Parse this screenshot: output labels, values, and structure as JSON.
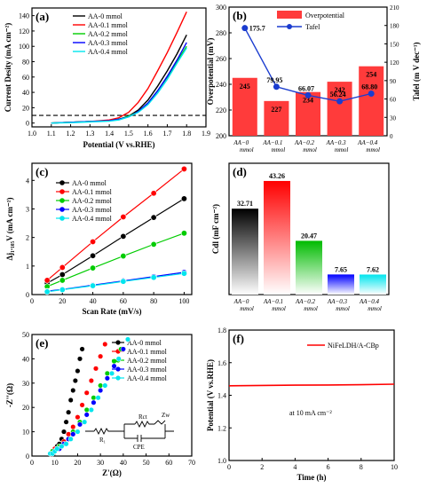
{
  "chart_data": [
    {
      "panel": "(a)",
      "type": "line",
      "xlabel": "Potential (V vs.RHE)",
      "ylabel": "Current Desity (mA cm⁻²)",
      "xlim": [
        1.0,
        1.9
      ],
      "ylim": [
        -5,
        150
      ],
      "xticks": [
        "1.0",
        "1.1",
        "1.2",
        "1.3",
        "1.4",
        "1.5",
        "1.6",
        "1.7",
        "1.8",
        "1.9"
      ],
      "yticks": [
        "0",
        "20",
        "40",
        "60",
        "80",
        "100",
        "120",
        "140"
      ],
      "reference_line_y": 10,
      "series": [
        {
          "name": "AA-0 mmol",
          "color": "#000000",
          "x": [
            1.1,
            1.2,
            1.3,
            1.4,
            1.45,
            1.5,
            1.55,
            1.6,
            1.65,
            1.7,
            1.75,
            1.8
          ],
          "y": [
            0,
            1,
            2,
            3,
            5,
            9,
            17,
            30,
            48,
            68,
            90,
            115
          ]
        },
        {
          "name": "AA-0.1 mmol",
          "color": "#ff0000",
          "x": [
            1.1,
            1.2,
            1.3,
            1.4,
            1.45,
            1.5,
            1.55,
            1.6,
            1.65,
            1.7,
            1.75,
            1.8
          ],
          "y": [
            0,
            1,
            2,
            4,
            7,
            14,
            27,
            45,
            68,
            92,
            118,
            145
          ]
        },
        {
          "name": "AA-0.2 mmol",
          "color": "#00cc00",
          "x": [
            1.1,
            1.2,
            1.3,
            1.4,
            1.45,
            1.5,
            1.55,
            1.6,
            1.65,
            1.7,
            1.75,
            1.8
          ],
          "y": [
            0,
            1,
            2,
            3,
            5,
            9,
            15,
            26,
            42,
            60,
            80,
            100
          ]
        },
        {
          "name": "AA-0.3 mmol",
          "color": "#0000ff",
          "x": [
            1.1,
            1.2,
            1.3,
            1.4,
            1.45,
            1.5,
            1.55,
            1.6,
            1.65,
            1.7,
            1.75,
            1.8
          ],
          "y": [
            0,
            1,
            2,
            3,
            5,
            8,
            15,
            26,
            42,
            61,
            82,
            105
          ]
        },
        {
          "name": "AA-0.4 mmol",
          "color": "#00e5ee",
          "x": [
            1.1,
            1.2,
            1.3,
            1.4,
            1.45,
            1.5,
            1.55,
            1.6,
            1.65,
            1.7,
            1.75,
            1.8
          ],
          "y": [
            0,
            0.5,
            1.5,
            2.5,
            4,
            8,
            14,
            24,
            39,
            57,
            78,
            98
          ]
        }
      ]
    },
    {
      "panel": "(b)",
      "type": "bar",
      "categories": [
        "AA−0 mmol",
        "AA−0.1 mmol",
        "AA−0.2 mmol",
        "AA−0.3 mmol",
        "AA−0.4 mmol"
      ],
      "ylabel": "Overpotential (mV)",
      "ylim": [
        200,
        300
      ],
      "yticks": [
        "200",
        "220",
        "240",
        "260",
        "280",
        "300"
      ],
      "y2label": "Tafel (m V dec⁻¹)",
      "y2lim": [
        0,
        210
      ],
      "y2ticks": [
        "0",
        "30",
        "60",
        "90",
        "120",
        "150",
        "180",
        "210"
      ],
      "bar_color": "#ff3b3b",
      "line_color": "#1a3ccf",
      "series": [
        {
          "name": "Overpotential",
          "values": [
            245,
            227,
            234,
            242,
            254
          ],
          "labels": [
            "245",
            "227",
            "234",
            "242",
            "254"
          ]
        },
        {
          "name": "Tafel",
          "values": [
            175.7,
            79.95,
            66.07,
            56.24,
            68.8
          ],
          "labels": [
            "175.7",
            "79.95",
            "66.07",
            "56.24",
            "68.80"
          ]
        }
      ]
    },
    {
      "panel": "(c)",
      "type": "scatter",
      "xlabel": "Scan Rate (mV/s)",
      "ylabel": "Δj₁.₁₀₅V (mA cm⁻²)",
      "xlim": [
        0,
        105
      ],
      "ylim": [
        0,
        4.6
      ],
      "xticks": [
        "0",
        "20",
        "40",
        "60",
        "80",
        "100"
      ],
      "yticks": [
        "0",
        "1",
        "2",
        "3",
        "4"
      ],
      "x": [
        10,
        20,
        40,
        60,
        80,
        100
      ],
      "series": [
        {
          "name": "AA-0 mmol",
          "color": "#000000",
          "values": [
            0.4,
            0.7,
            1.36,
            2.04,
            2.7,
            3.36
          ]
        },
        {
          "name": "AA-0.1 mmol",
          "color": "#ff0000",
          "values": [
            0.5,
            0.95,
            1.85,
            2.72,
            3.55,
            4.4
          ]
        },
        {
          "name": "AA-0.2 mmol",
          "color": "#00cc00",
          "values": [
            0.28,
            0.5,
            0.93,
            1.35,
            1.76,
            2.15
          ]
        },
        {
          "name": "AA-0.3 mmol",
          "color": "#0000ff",
          "values": [
            0.12,
            0.18,
            0.33,
            0.48,
            0.63,
            0.78
          ]
        },
        {
          "name": "AA-0.4 mmol",
          "color": "#00e5ee",
          "values": [
            0.1,
            0.17,
            0.31,
            0.46,
            0.6,
            0.74
          ]
        }
      ]
    },
    {
      "panel": "(d)",
      "type": "bar",
      "categories": [
        "AA−0 mmol",
        "AA−0.1 mmol",
        "AA−0.2 mmol",
        "AA−0.3 mmol",
        "AA−0.4 mmol"
      ],
      "ylabel": "Cdl (mF cm⁻²)",
      "ylim": [
        0,
        50
      ],
      "values": [
        32.71,
        43.26,
        20.47,
        7.65,
        7.62
      ],
      "labels": [
        "32.71",
        "43.26",
        "20.47",
        "7.65",
        "7.62"
      ],
      "colors": [
        "#000000",
        "#ff0000",
        "#00bb00",
        "#0000ff",
        "#00e5ee"
      ]
    },
    {
      "panel": "(e)",
      "type": "scatter",
      "xlabel": "Z'(Ω)",
      "ylabel": "-Z''(Ω)",
      "xlim": [
        0,
        70
      ],
      "ylim": [
        0,
        50
      ],
      "xticks": [
        "0",
        "10",
        "20",
        "30",
        "40",
        "50",
        "60",
        "70"
      ],
      "yticks": [
        "0",
        "10",
        "20",
        "30",
        "40",
        "50"
      ],
      "circuit_labels": [
        "R₁",
        "Rct",
        "CPE",
        "Zw"
      ],
      "series": [
        {
          "name": "AA-0 mmol",
          "color": "#000000",
          "x": [
            8,
            9,
            10,
            11,
            12,
            13,
            14,
            15,
            16,
            17,
            18,
            19,
            20,
            21,
            22
          ],
          "y": [
            1,
            2,
            3,
            4,
            5,
            7,
            10,
            14,
            18,
            23,
            27,
            31,
            35,
            40,
            44
          ]
        },
        {
          "name": "AA-0.1 mmol",
          "color": "#ff0000",
          "x": [
            8,
            9,
            10,
            11,
            12,
            14,
            16,
            18,
            20,
            22,
            24,
            26,
            28,
            30,
            32
          ],
          "y": [
            1,
            2,
            3,
            3,
            4,
            6,
            9,
            12,
            16,
            21,
            26,
            31,
            36,
            41,
            46
          ]
        },
        {
          "name": "AA-0.2 mmol",
          "color": "#00cc00",
          "x": [
            8,
            9,
            10,
            11,
            12,
            14,
            16,
            18,
            21,
            24,
            27,
            30,
            33,
            36,
            39
          ],
          "y": [
            1,
            2,
            2,
            3,
            4,
            5,
            7,
            10,
            14,
            19,
            24,
            29,
            34,
            39,
            44
          ]
        },
        {
          "name": "AA-0.3 mmol",
          "color": "#0000ff",
          "x": [
            8,
            9,
            10,
            11,
            12,
            14,
            16,
            18,
            21,
            24,
            27,
            30,
            33,
            36,
            40
          ],
          "y": [
            1,
            1,
            2,
            3,
            3,
            5,
            7,
            9,
            13,
            17,
            22,
            27,
            32,
            37,
            44
          ]
        },
        {
          "name": "AA-0.4 mmol",
          "color": "#00e5ee",
          "x": [
            8,
            9,
            10,
            11,
            13,
            15,
            17,
            20,
            23,
            26,
            29,
            32,
            35,
            38,
            42
          ],
          "y": [
            1,
            1,
            2,
            3,
            4,
            5,
            7,
            10,
            14,
            19,
            24,
            29,
            34,
            40,
            48
          ]
        }
      ]
    },
    {
      "panel": "(f)",
      "type": "line",
      "xlabel": "Time (h)",
      "ylabel": "Potential (V vs.RHE)",
      "xlim": [
        0,
        10
      ],
      "ylim": [
        1.0,
        1.8
      ],
      "xticks": [
        "0",
        "2",
        "4",
        "6",
        "8",
        "10"
      ],
      "yticks": [
        "1.0",
        "1.2",
        "1.4",
        "1.6",
        "1.8"
      ],
      "annotation": "at 10 mA cm⁻²",
      "series": [
        {
          "name": "NiFeLDH/A-CBp",
          "color": "#ff0000",
          "x": [
            0,
            2,
            4,
            6,
            8,
            10
          ],
          "y": [
            1.458,
            1.46,
            1.462,
            1.463,
            1.465,
            1.468
          ]
        }
      ]
    }
  ]
}
